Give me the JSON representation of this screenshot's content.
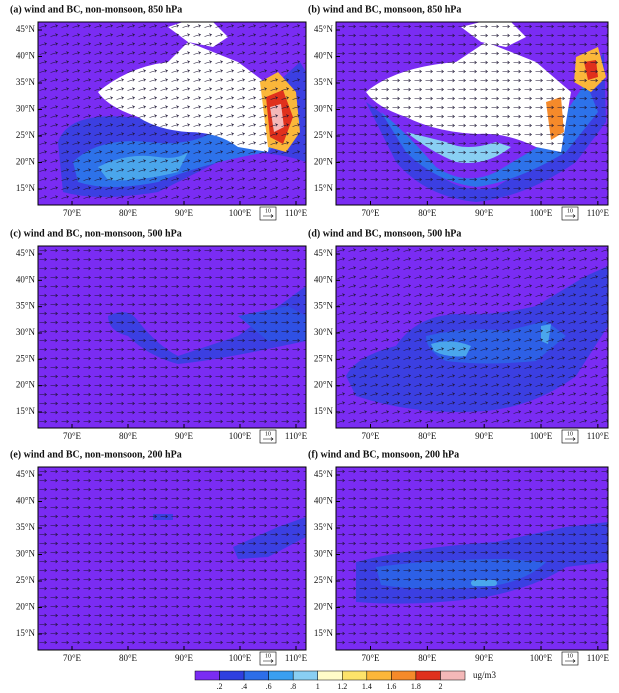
{
  "panels": [
    {
      "title": "(a) wind and BC, non-monsoon, 850 hPa"
    },
    {
      "title": "(b) wind and BC, monsoon, 850 hPa"
    },
    {
      "title": "(c) wind and BC, non-monsoon, 500 hPa"
    },
    {
      "title": "(d) wind and BC, monsoon, 500 hPa"
    },
    {
      "title": "(e) wind and BC, non-monsoon, 200 hPa"
    },
    {
      "title": "(f) wind and BC, monsoon, 200 hPa"
    }
  ],
  "lat_labels": [
    "45°N",
    "40°N",
    "35°N",
    "30°N",
    "25°N",
    "20°N",
    "15°N"
  ],
  "lon_labels": [
    "70°E",
    "80°E",
    "90°E",
    "100°E",
    "110°E"
  ],
  "ref_vector": "10",
  "colorbar": {
    "labels": [
      ".2",
      ".4",
      ".6",
      ".8",
      "1",
      "1.2",
      "1.4",
      "1.6",
      "1.8",
      "2"
    ],
    "colors": [
      "#7a2cf3",
      "#2f3fe0",
      "#2d6ee8",
      "#3a9ff0",
      "#89cff3",
      "#fffcc8",
      "#fde36a",
      "#fbb73a",
      "#f58a2a",
      "#e0301c",
      "#f4b8b8"
    ],
    "unit": "ug/m3"
  }
}
